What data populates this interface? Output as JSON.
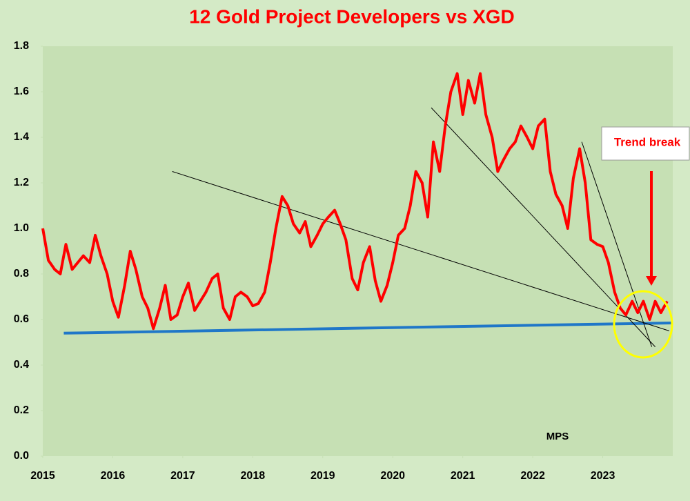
{
  "chart_data": {
    "type": "line",
    "title": "12 Gold Project Developers vs XGD",
    "color": "#ff0000",
    "x": [
      2015,
      2015.08,
      2015.17,
      2015.25,
      2015.33,
      2015.42,
      2015.5,
      2015.58,
      2015.67,
      2015.75,
      2015.83,
      2015.92,
      2016,
      2016.08,
      2016.17,
      2016.25,
      2016.33,
      2016.42,
      2016.5,
      2016.58,
      2016.67,
      2016.75,
      2016.83,
      2016.92,
      2017,
      2017.08,
      2017.17,
      2017.25,
      2017.33,
      2017.42,
      2017.5,
      2017.58,
      2017.67,
      2017.75,
      2017.83,
      2017.92,
      2018,
      2018.08,
      2018.17,
      2018.25,
      2018.33,
      2018.42,
      2018.5,
      2018.58,
      2018.67,
      2018.75,
      2018.83,
      2018.92,
      2019,
      2019.08,
      2019.17,
      2019.25,
      2019.33,
      2019.42,
      2019.5,
      2019.58,
      2019.67,
      2019.75,
      2019.83,
      2019.92,
      2020,
      2020.08,
      2020.17,
      2020.25,
      2020.33,
      2020.42,
      2020.5,
      2020.58,
      2020.67,
      2020.75,
      2020.83,
      2020.92,
      2021,
      2021.08,
      2021.17,
      2021.25,
      2021.33,
      2021.42,
      2021.5,
      2021.58,
      2021.67,
      2021.75,
      2021.83,
      2021.92,
      2022,
      2022.08,
      2022.17,
      2022.25,
      2022.33,
      2022.42,
      2022.5,
      2022.58,
      2022.67,
      2022.75,
      2022.83,
      2022.92,
      2023,
      2023.08,
      2023.17,
      2023.25,
      2023.33,
      2023.42,
      2023.5,
      2023.58,
      2023.67,
      2023.75,
      2023.83,
      2023.92
    ],
    "values": [
      1.0,
      0.86,
      0.82,
      0.8,
      0.93,
      0.82,
      0.85,
      0.88,
      0.85,
      0.97,
      0.88,
      0.8,
      0.68,
      0.61,
      0.75,
      0.9,
      0.82,
      0.7,
      0.65,
      0.56,
      0.65,
      0.75,
      0.6,
      0.62,
      0.7,
      0.76,
      0.64,
      0.68,
      0.72,
      0.78,
      0.8,
      0.65,
      0.6,
      0.7,
      0.72,
      0.7,
      0.66,
      0.67,
      0.72,
      0.85,
      1.0,
      1.14,
      1.1,
      1.02,
      0.98,
      1.03,
      0.92,
      0.97,
      1.02,
      1.05,
      1.08,
      1.02,
      0.95,
      0.78,
      0.73,
      0.85,
      0.92,
      0.77,
      0.68,
      0.75,
      0.85,
      0.97,
      1.0,
      1.1,
      1.25,
      1.2,
      1.05,
      1.38,
      1.25,
      1.45,
      1.6,
      1.68,
      1.5,
      1.65,
      1.55,
      1.68,
      1.5,
      1.4,
      1.25,
      1.3,
      1.35,
      1.38,
      1.45,
      1.4,
      1.35,
      1.45,
      1.48,
      1.25,
      1.15,
      1.1,
      1.0,
      1.22,
      1.35,
      1.2,
      0.95,
      0.93,
      0.92,
      0.85,
      0.72,
      0.65,
      0.62,
      0.68,
      0.63,
      0.68,
      0.6,
      0.68,
      0.63,
      0.68
    ],
    "trend_lines": [
      {
        "color": "#1f77c8",
        "x": [
          2015.3,
          2024
        ],
        "values": [
          0.54,
          0.585
        ]
      },
      {
        "color": "#000000",
        "x": [
          2016.85,
          2023.95
        ],
        "values": [
          1.25,
          0.55
        ]
      },
      {
        "color": "#000000",
        "x": [
          2020.55,
          2023.75
        ],
        "values": [
          1.53,
          0.48
        ]
      },
      {
        "color": "#000000",
        "x": [
          2022.7,
          2023.7
        ],
        "values": [
          1.38,
          0.48
        ]
      }
    ],
    "annotations": [
      "Trend break",
      "MPS"
    ],
    "xlim": [
      2015,
      2024
    ],
    "xticks": [
      2015,
      2016,
      2017,
      2018,
      2019,
      2020,
      2021,
      2022,
      2023
    ],
    "ylim": [
      0,
      1.8
    ],
    "yticks": [
      {
        "value": 0,
        "label": "0.0"
      },
      0.2,
      0.4,
      0.6,
      0.8,
      {
        "value": 1,
        "label": "1.0"
      },
      1.2,
      1.4,
      1.6,
      1.8
    ],
    "grid": false
  }
}
